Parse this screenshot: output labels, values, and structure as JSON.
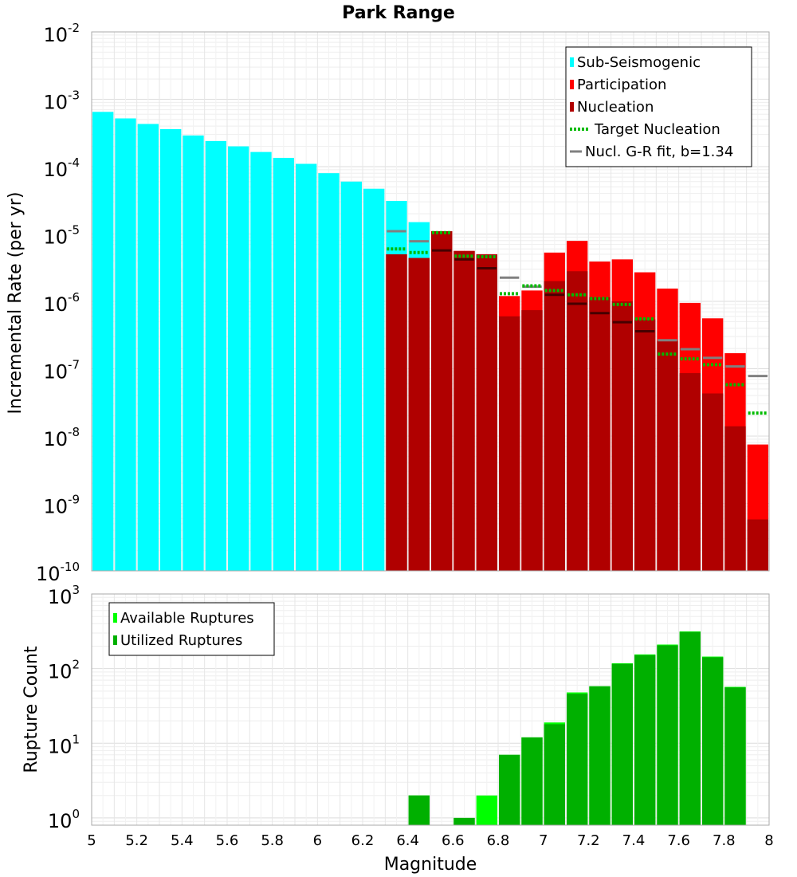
{
  "chart_data": [
    {
      "type": "bar",
      "title": "Park Range",
      "ylabel": "Incremental Rate (per yr)",
      "xlabel": "",
      "xlim": [
        5,
        8
      ],
      "ylim": [
        1e-10,
        0.01
      ],
      "yscale": "log",
      "yticks": [
        {
          "base": "10",
          "exp": "-10"
        },
        {
          "base": "10",
          "exp": "-9"
        },
        {
          "base": "10",
          "exp": "-8"
        },
        {
          "base": "10",
          "exp": "-7"
        },
        {
          "base": "10",
          "exp": "-6"
        },
        {
          "base": "10",
          "exp": "-5"
        },
        {
          "base": "10",
          "exp": "-4"
        },
        {
          "base": "10",
          "exp": "-3"
        },
        {
          "base": "10",
          "exp": "-2"
        }
      ],
      "grid": true,
      "legend_position": "top-right",
      "bin_width": 0.1,
      "series": [
        {
          "name": "Sub-Seismogenic",
          "color": "#00ffff",
          "x": [
            5.05,
            5.15,
            5.25,
            5.35,
            5.45,
            5.55,
            5.65,
            5.75,
            5.85,
            5.95,
            6.05,
            6.15,
            6.25,
            6.35,
            6.45
          ],
          "values": [
            0.00065,
            0.00052,
            0.00043,
            0.00036,
            0.00029,
            0.00024,
            0.0002,
            0.000165,
            0.000135,
            0.00011,
            8e-05,
            6e-05,
            4.7e-05,
            3.1e-05,
            1.5e-05
          ]
        },
        {
          "name": "Participation",
          "color": "#ff0000",
          "x": [
            6.35,
            6.45,
            6.55,
            6.65,
            6.75,
            6.85,
            6.95,
            7.05,
            7.15,
            7.25,
            7.35,
            7.45,
            7.55,
            7.65,
            7.75,
            7.85,
            7.95
          ],
          "values": [
            5e-06,
            4.4e-06,
            1.1e-05,
            5.6e-06,
            5e-06,
            1.2e-06,
            1.45e-06,
            5.3e-06,
            7.9e-06,
            3.9e-06,
            4.2e-06,
            2.7e-06,
            1.55e-06,
            9.5e-07,
            5.6e-07,
            1.7e-07,
            7.5e-09
          ]
        },
        {
          "name": "Nucleation",
          "color": "#b00000",
          "x": [
            6.35,
            6.45,
            6.55,
            6.65,
            6.75,
            6.85,
            6.95,
            7.05,
            7.15,
            7.25,
            7.35,
            7.45,
            7.55,
            7.65,
            7.75,
            7.85,
            7.95
          ],
          "values": [
            5e-06,
            4.4e-06,
            1.1e-05,
            5.6e-06,
            5e-06,
            6e-07,
            7.4e-07,
            2e-06,
            2.8e-06,
            1.15e-06,
            1e-06,
            5.4e-07,
            2.6e-07,
            8.6e-08,
            4.3e-08,
            1.4e-08,
            5.8e-10
          ]
        },
        {
          "name": "Target Nucleation",
          "color": "#00bb00",
          "style": "dotted",
          "x": [
            6.35,
            6.45,
            6.55,
            6.65,
            6.75,
            6.85,
            6.95,
            7.05,
            7.15,
            7.25,
            7.35,
            7.45,
            7.55,
            7.65,
            7.75,
            7.85,
            7.95
          ],
          "values": [
            6e-06,
            5.3e-06,
            1.05e-05,
            4.7e-06,
            4.6e-06,
            1.3e-06,
            1.7e-06,
            1.45e-06,
            1.25e-06,
            1.1e-06,
            9e-07,
            5.5e-07,
            1.65e-07,
            1.4e-07,
            1.15e-07,
            5.8e-08,
            2.2e-08
          ]
        },
        {
          "name": "Nucl. G-R fit, b=1.34",
          "color": "#000000",
          "color_extended": "#808080",
          "style": "line",
          "x": [
            6.35,
            6.45,
            6.55,
            6.65,
            6.75,
            6.85,
            6.95,
            7.05,
            7.15,
            7.25,
            7.35,
            7.45,
            7.55,
            7.65,
            7.75,
            7.85,
            7.95
          ],
          "values": [
            1.1e-05,
            7.8e-06,
            5.7e-06,
            4.2e-06,
            3.1e-06,
            2.25e-06,
            1.65e-06,
            1.25e-06,
            9.2e-07,
            6.7e-07,
            4.9e-07,
            3.6e-07,
            2.65e-07,
            1.95e-07,
            1.45e-07,
            1.08e-07,
            7.8e-08
          ]
        }
      ]
    },
    {
      "type": "bar",
      "title": "",
      "ylabel": "Rupture Count",
      "xlabel": "Magnitude",
      "xlim": [
        5,
        8
      ],
      "ylim": [
        0.8,
        1000
      ],
      "yscale": "log",
      "yticks": [
        {
          "base": "10",
          "exp": "0"
        },
        {
          "base": "10",
          "exp": "1"
        },
        {
          "base": "10",
          "exp": "2"
        },
        {
          "base": "10",
          "exp": "3"
        }
      ],
      "xticks": [
        "5",
        "5.2",
        "5.4",
        "5.6",
        "5.8",
        "6",
        "6.2",
        "6.4",
        "6.6",
        "6.8",
        "7",
        "7.2",
        "7.4",
        "7.6",
        "7.8",
        "8"
      ],
      "grid": true,
      "legend_position": "top-left",
      "bin_width": 0.1,
      "series": [
        {
          "name": "Available Ruptures",
          "color": "#00ff00",
          "x": [
            6.45,
            6.65,
            6.75,
            6.85,
            6.95,
            7.05,
            7.15,
            7.25,
            7.35,
            7.45,
            7.55,
            7.65,
            7.75,
            7.85
          ],
          "values": [
            2,
            1,
            2,
            7,
            12,
            19,
            48,
            58,
            118,
            155,
            210,
            315,
            145,
            57
          ]
        },
        {
          "name": "Utilized Ruptures",
          "color": "#00b000",
          "x": [
            6.45,
            6.65,
            6.75,
            6.85,
            6.95,
            7.05,
            7.15,
            7.25,
            7.35,
            7.45,
            7.55,
            7.65,
            7.75,
            7.85
          ],
          "values": [
            2,
            1,
            0,
            7,
            12,
            18,
            46,
            58,
            116,
            152,
            205,
            310,
            142,
            56
          ]
        }
      ]
    }
  ]
}
